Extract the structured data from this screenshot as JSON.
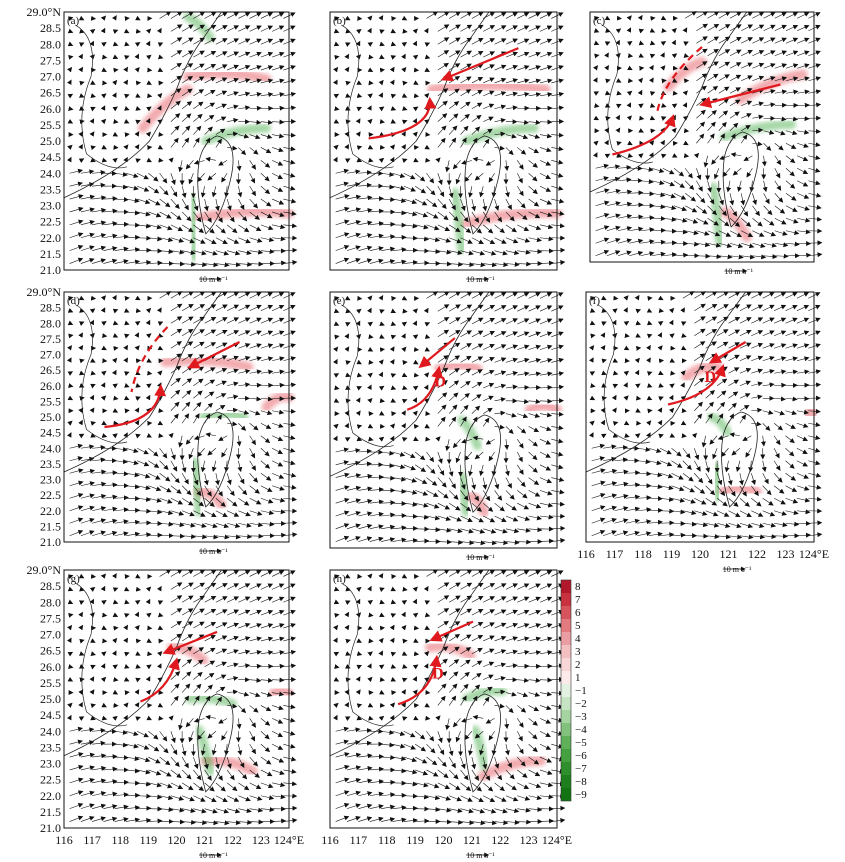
{
  "chart_data": [
    {
      "type": "vector-field",
      "panel": "(a)",
      "label": "(a)",
      "ylim": [
        21.0,
        29.0
      ],
      "xlim": [
        116,
        124
      ],
      "lat_labels": [
        "29.0°N",
        "28.5",
        "28.0",
        "27.5",
        "27.0",
        "26.5",
        "26.0",
        "25.5",
        "25.0",
        "24.5",
        "24.0",
        "23.5",
        "23.0",
        "22.5",
        "22.0",
        "21.5",
        "21.0"
      ],
      "scale_vector": {
        "value": 10,
        "unit": "m·s⁻¹"
      }
    },
    {
      "type": "vector-field",
      "panel": "(b)",
      "label": "(b)",
      "xlim": [
        116,
        124
      ],
      "ylim": [
        21.0,
        29.0
      ],
      "scale_vector": {
        "value": 10,
        "unit": "m·s⁻¹"
      }
    },
    {
      "type": "vector-field",
      "panel": "(c)",
      "label": "(c)",
      "xlim": [
        116,
        124
      ],
      "ylim": [
        21.0,
        29.0
      ],
      "scale_vector": {
        "value": 10,
        "unit": "m·s⁻¹"
      }
    },
    {
      "type": "vector-field",
      "panel": "(d)",
      "label": "(d)",
      "ylim": [
        21.0,
        29.0
      ],
      "xlim": [
        116,
        124
      ],
      "lat_labels": [
        "29.0°N",
        "28.5",
        "28.0",
        "27.5",
        "27.0",
        "26.5",
        "26.0",
        "25.5",
        "25.0",
        "24.5",
        "24.0",
        "23.5",
        "23.0",
        "22.5",
        "22.0",
        "21.5",
        "21.0"
      ],
      "scale_vector": {
        "value": 10,
        "unit": "m·s⁻¹"
      }
    },
    {
      "type": "vector-field",
      "panel": "(e)",
      "label": "(e)",
      "xlim": [
        116,
        124
      ],
      "ylim": [
        21.0,
        29.0
      ],
      "marker": "D",
      "scale_vector": {
        "value": 10,
        "unit": "m·s⁻¹"
      }
    },
    {
      "type": "vector-field",
      "panel": "(f)",
      "label": "(f)",
      "xlim": [
        116,
        124
      ],
      "ylim": [
        21.0,
        29.0
      ],
      "marker": "D",
      "lon_labels": [
        "116",
        "117",
        "118",
        "119",
        "120",
        "121",
        "122",
        "123",
        "124°E"
      ],
      "scale_vector": {
        "value": 10,
        "unit": "m·s⁻¹"
      }
    },
    {
      "type": "vector-field",
      "panel": "(g)",
      "label": "(g)",
      "ylim": [
        21.0,
        29.0
      ],
      "xlim": [
        116,
        124
      ],
      "lat_labels": [
        "29.0°N",
        "28.5",
        "28.0",
        "27.5",
        "27.0",
        "26.5",
        "26.0",
        "25.5",
        "25.0",
        "24.5",
        "24.0",
        "23.5",
        "23.0",
        "22.5",
        "22.0",
        "21.5",
        "21.0"
      ],
      "lon_labels": [
        "116",
        "117",
        "118",
        "119",
        "120",
        "121",
        "122",
        "123",
        "124°E"
      ],
      "scale_vector": {
        "value": 10,
        "unit": "m·s⁻¹"
      }
    },
    {
      "type": "vector-field",
      "panel": "(h)",
      "label": "(h)",
      "xlim": [
        116,
        124
      ],
      "ylim": [
        21.0,
        29.0
      ],
      "marker": "D",
      "lon_labels": [
        "116",
        "117",
        "118",
        "119",
        "120",
        "121",
        "122",
        "123",
        "124°E"
      ],
      "scale_vector": {
        "value": 10,
        "unit": "m·s⁻¹"
      }
    }
  ],
  "colorbar": {
    "labels": [
      "8",
      "7",
      "6",
      "5",
      "4",
      "3",
      "2",
      "1",
      "−1",
      "−2",
      "−3",
      "−4",
      "−5",
      "−6",
      "−7",
      "−8",
      "−9"
    ],
    "colors": [
      "#b2182b",
      "#c8323e",
      "#d6545c",
      "#e27a80",
      "#eb9ea2",
      "#f3bfc1",
      "#f8d6d7",
      "#fdebec",
      "#e3f1e2",
      "#c6e4c3",
      "#a5d4a1",
      "#82c27c",
      "#60b05a",
      "#45a040",
      "#2e8f2c",
      "#1f7f1f",
      "#137313"
    ]
  },
  "colors": {
    "positive": "#e8666e",
    "negative": "#4caf50",
    "arrow": "#e0191e",
    "vector": "#111111",
    "coast": "#222222"
  }
}
